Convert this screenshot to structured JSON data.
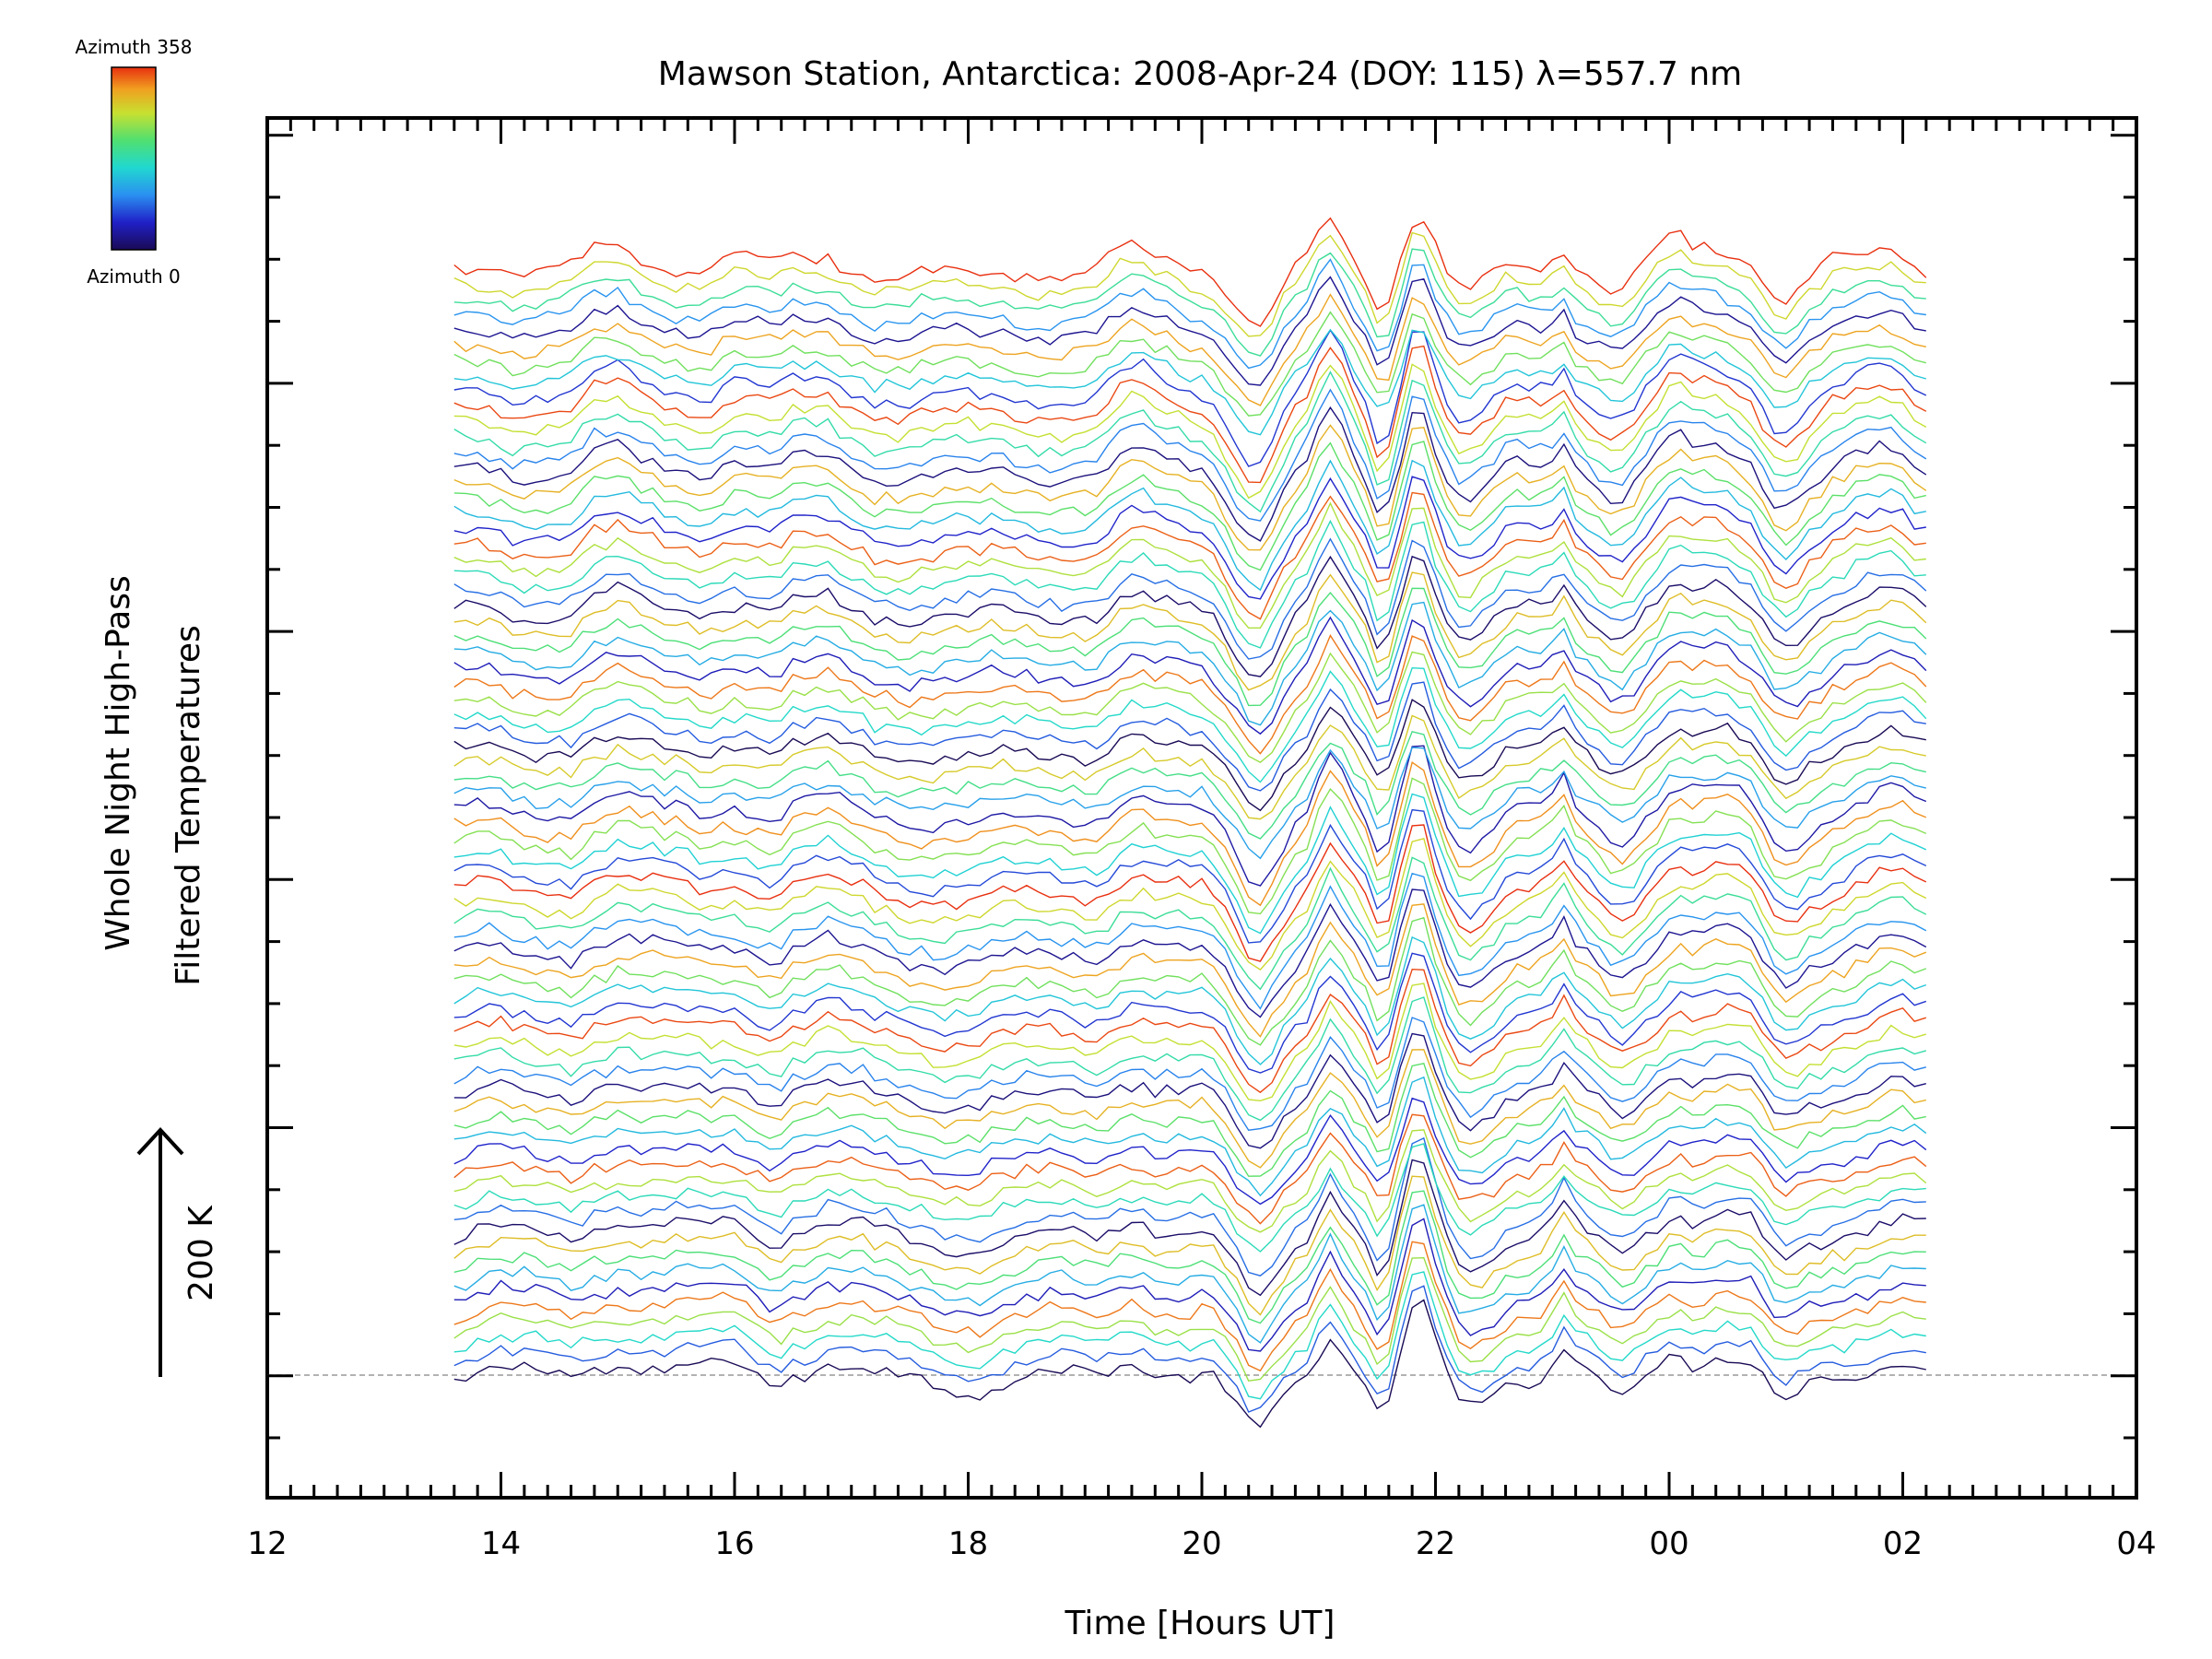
{
  "chart_data": {
    "type": "line",
    "title": "Mawson Station, Antarctica: 2008-Apr-24 (DOY: 115) λ=557.7 nm",
    "xlabel": "Time [Hours UT]",
    "ylabel_line1": "Whole Night High-Pass",
    "ylabel_line2": "Filtered Temperatures",
    "scale_label": "200 K",
    "x_tick_labels": [
      "12",
      "14",
      "16",
      "18",
      "20",
      "22",
      "00",
      "02",
      "04"
    ],
    "xlim": [
      12,
      28
    ],
    "data_range": [
      13.6,
      26.2
    ],
    "n_series": 72,
    "grid": false,
    "colorbar": {
      "top_label": "Azimuth 358",
      "bottom_label": "Azimuth 0",
      "min": 0,
      "max": 358
    },
    "series_pattern_note": "stacked traces, one per azimuth",
    "colors": {
      "axis": "#000000",
      "baseline": "#999999"
    }
  }
}
